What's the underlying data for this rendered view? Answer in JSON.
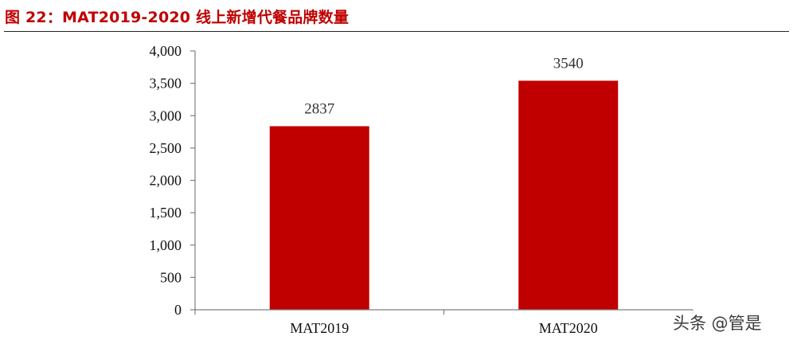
{
  "figure": {
    "title": "图 22：MAT2019-2020 线上新增代餐品牌数量",
    "title_color": "#c00000"
  },
  "watermark": "头条 @管是",
  "chart_data": {
    "type": "bar",
    "categories": [
      "MAT2019",
      "MAT2020"
    ],
    "values": [
      2837,
      3540
    ],
    "data_labels": [
      "2837",
      "3540"
    ],
    "ylim": [
      0,
      4000
    ],
    "yticks": [
      0,
      500,
      1000,
      1500,
      2000,
      2500,
      3000,
      3500,
      4000
    ],
    "ytick_labels": [
      "0",
      "500",
      "1,000",
      "1,500",
      "2,000",
      "2,500",
      "3,000",
      "3,500",
      "4,000"
    ],
    "bar_color": "#c00000",
    "grid": false,
    "legend": "none"
  }
}
